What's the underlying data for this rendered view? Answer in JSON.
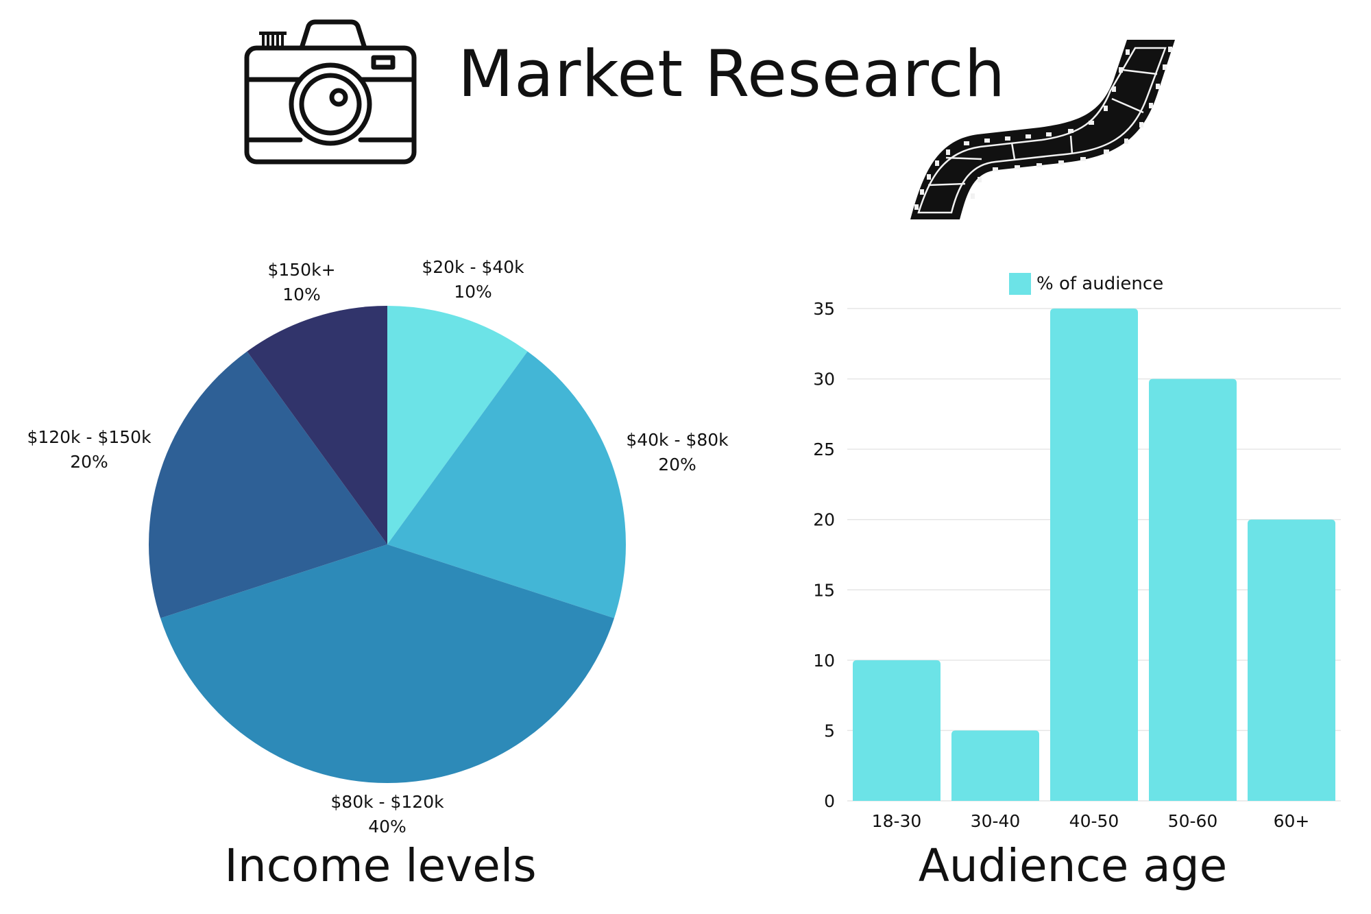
{
  "title": "Market Research",
  "icons": {
    "camera": "camera-icon",
    "film": "film-strip-icon"
  },
  "colors": {
    "slice_20_40": "#6ce3e7",
    "slice_40_80": "#43b6d6",
    "slice_80_120": "#2d8ab8",
    "slice_120_150": "#2e6096",
    "slice_150_plus": "#31346b",
    "bar": "#6ce3e7",
    "grid": "#e6e6e6"
  },
  "chart_data": [
    {
      "type": "pie",
      "title": "Income levels",
      "slices": [
        {
          "label": "$20k - $40k",
          "percent_label": "10%",
          "value": 10
        },
        {
          "label": "$40k - $80k",
          "percent_label": "20%",
          "value": 20
        },
        {
          "label": "$80k - $120k",
          "percent_label": "40%",
          "value": 40
        },
        {
          "label": "$120k - $150k",
          "percent_label": "20%",
          "value": 20
        },
        {
          "label": "$150k+",
          "percent_label": "10%",
          "value": 10
        }
      ]
    },
    {
      "type": "bar",
      "title": "Audience age",
      "categories": [
        "18-30",
        "30-40",
        "40-50",
        "50-60",
        "60+"
      ],
      "series": [
        {
          "name": "% of audience",
          "values": [
            10,
            5,
            35,
            30,
            20
          ]
        }
      ],
      "ylim": [
        0,
        35
      ],
      "yticks": [
        0,
        5,
        10,
        15,
        20,
        25,
        30,
        35
      ],
      "grid": true,
      "legend": "top"
    }
  ]
}
